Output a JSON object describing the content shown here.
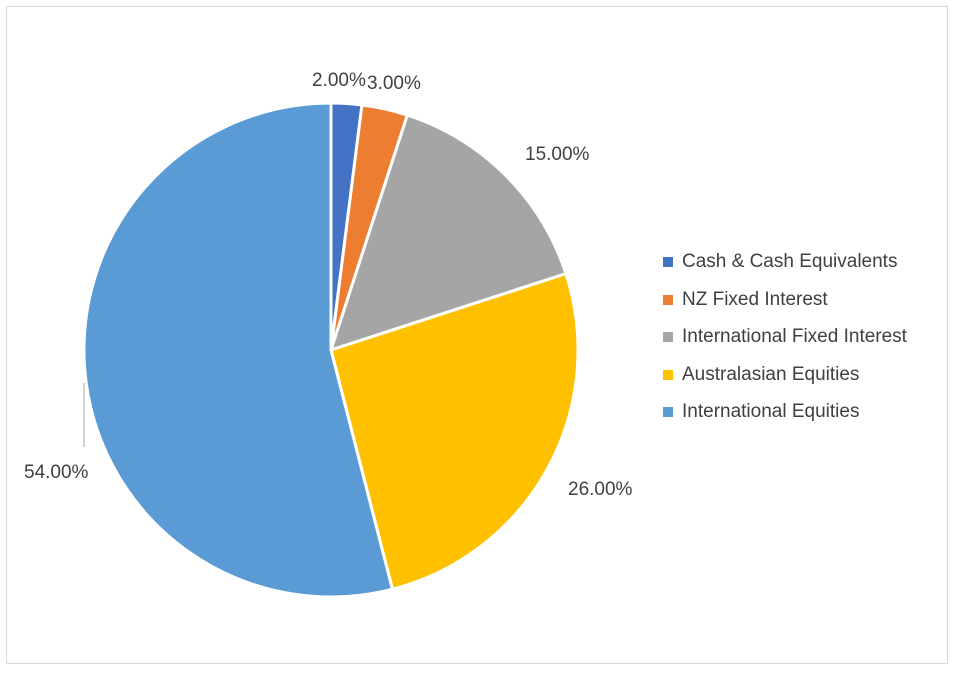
{
  "chart_data": {
    "type": "pie",
    "title": "",
    "legend_position": "right",
    "start_angle_deg": 0,
    "direction": "clockwise",
    "slices": [
      {
        "name": "Cash & Cash Equivalents",
        "value": 2.0,
        "label": "2.00%",
        "color": "#4472C4"
      },
      {
        "name": "NZ Fixed Interest",
        "value": 3.0,
        "label": "3.00%",
        "color": "#ED7D31"
      },
      {
        "name": "International Fixed Interest",
        "value": 15.0,
        "label": "15.00%",
        "color": "#A5A5A5"
      },
      {
        "name": "Australasian Equities",
        "value": 26.0,
        "label": "26.00%",
        "color": "#FFC000"
      },
      {
        "name": "International Equities",
        "value": 54.0,
        "label": "54.00%",
        "color": "#5B9BD5"
      }
    ]
  }
}
